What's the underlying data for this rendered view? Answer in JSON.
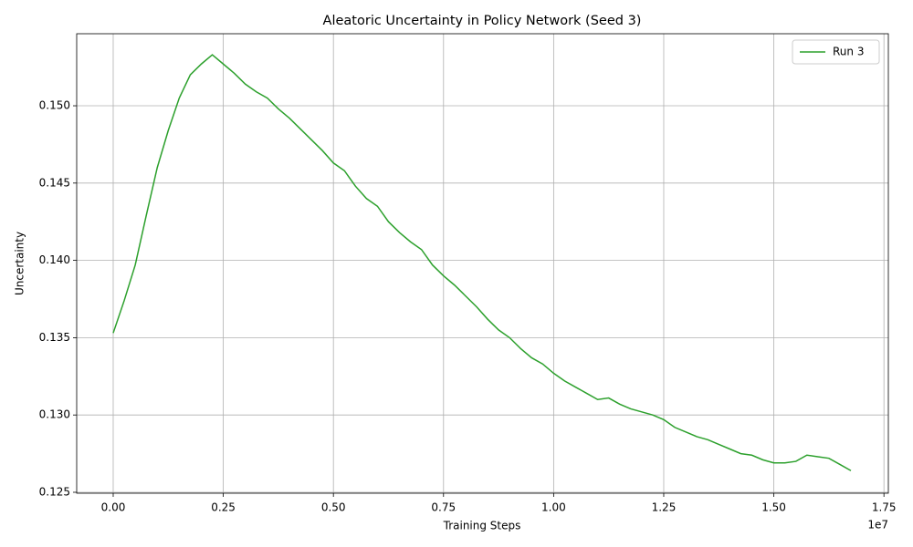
{
  "chart_data": {
    "type": "line",
    "title": "Aleatoric Uncertainty in Policy Network (Seed 3)",
    "x_label": "Training Steps",
    "y_label": "Uncertainty",
    "x_offset_label": "1e7",
    "x": [
      0,
      250000,
      500000,
      750000,
      1000000,
      1250000,
      1500000,
      1750000,
      2000000,
      2250000,
      2500000,
      2750000,
      3000000,
      3250000,
      3500000,
      3750000,
      4000000,
      4250000,
      4500000,
      4750000,
      5000000,
      5250000,
      5500000,
      5750000,
      6000000,
      6250000,
      6500000,
      6750000,
      7000000,
      7250000,
      7500000,
      7750000,
      8000000,
      8250000,
      8500000,
      8750000,
      9000000,
      9250000,
      9500000,
      9750000,
      10000000,
      10250000,
      10500000,
      10750000,
      11000000,
      11250000,
      11500000,
      11750000,
      12000000,
      12250000,
      12500000,
      12750000,
      13000000,
      13250000,
      13500000,
      13750000,
      14000000,
      14250000,
      14500000,
      14750000,
      15000000,
      15250000,
      15500000,
      15750000,
      16000000,
      16250000,
      16500000,
      16750000
    ],
    "series": [
      {
        "name": "Run 3",
        "color": "#2ca02c",
        "values": [
          0.1353,
          0.1374,
          0.1397,
          0.1429,
          0.146,
          0.1484,
          0.1505,
          0.152,
          0.1527,
          0.1533,
          0.1527,
          0.1521,
          0.1514,
          0.1509,
          0.1505,
          0.1498,
          0.1492,
          0.1485,
          0.1478,
          0.1471,
          0.1463,
          0.1458,
          0.1448,
          0.144,
          0.1435,
          0.1425,
          0.1418,
          0.1412,
          0.1407,
          0.1397,
          0.139,
          0.1384,
          0.1377,
          0.137,
          0.1362,
          0.1355,
          0.135,
          0.1343,
          0.1337,
          0.1333,
          0.1327,
          0.1322,
          0.1318,
          0.1314,
          0.131,
          0.1311,
          0.1307,
          0.1304,
          0.1302,
          0.13,
          0.1297,
          0.1292,
          0.1289,
          0.1286,
          0.1284,
          0.1281,
          0.1278,
          0.1275,
          0.1274,
          0.1271,
          0.1269,
          0.1269,
          0.127,
          0.1274,
          0.1273,
          0.1272,
          0.1268,
          0.1264
        ]
      }
    ],
    "xlim": [
      -829000,
      17600000
    ],
    "ylim": [
      0.12494,
      0.15466
    ],
    "xticks": [
      {
        "value": 0,
        "label": "0.00"
      },
      {
        "value": 2500000,
        "label": "0.25"
      },
      {
        "value": 5000000,
        "label": "0.50"
      },
      {
        "value": 7500000,
        "label": "0.75"
      },
      {
        "value": 10000000,
        "label": "1.00"
      },
      {
        "value": 12500000,
        "label": "1.25"
      },
      {
        "value": 15000000,
        "label": "1.50"
      },
      {
        "value": 17500000,
        "label": "1.75"
      }
    ],
    "yticks": [
      0.125,
      {
        "value": 0.13,
        "label": "0.130"
      },
      0.135,
      {
        "value": 0.14,
        "label": "0.140"
      },
      0.145,
      {
        "value": 0.15,
        "label": "0.150"
      }
    ],
    "grid": true,
    "legend": "upper right"
  }
}
